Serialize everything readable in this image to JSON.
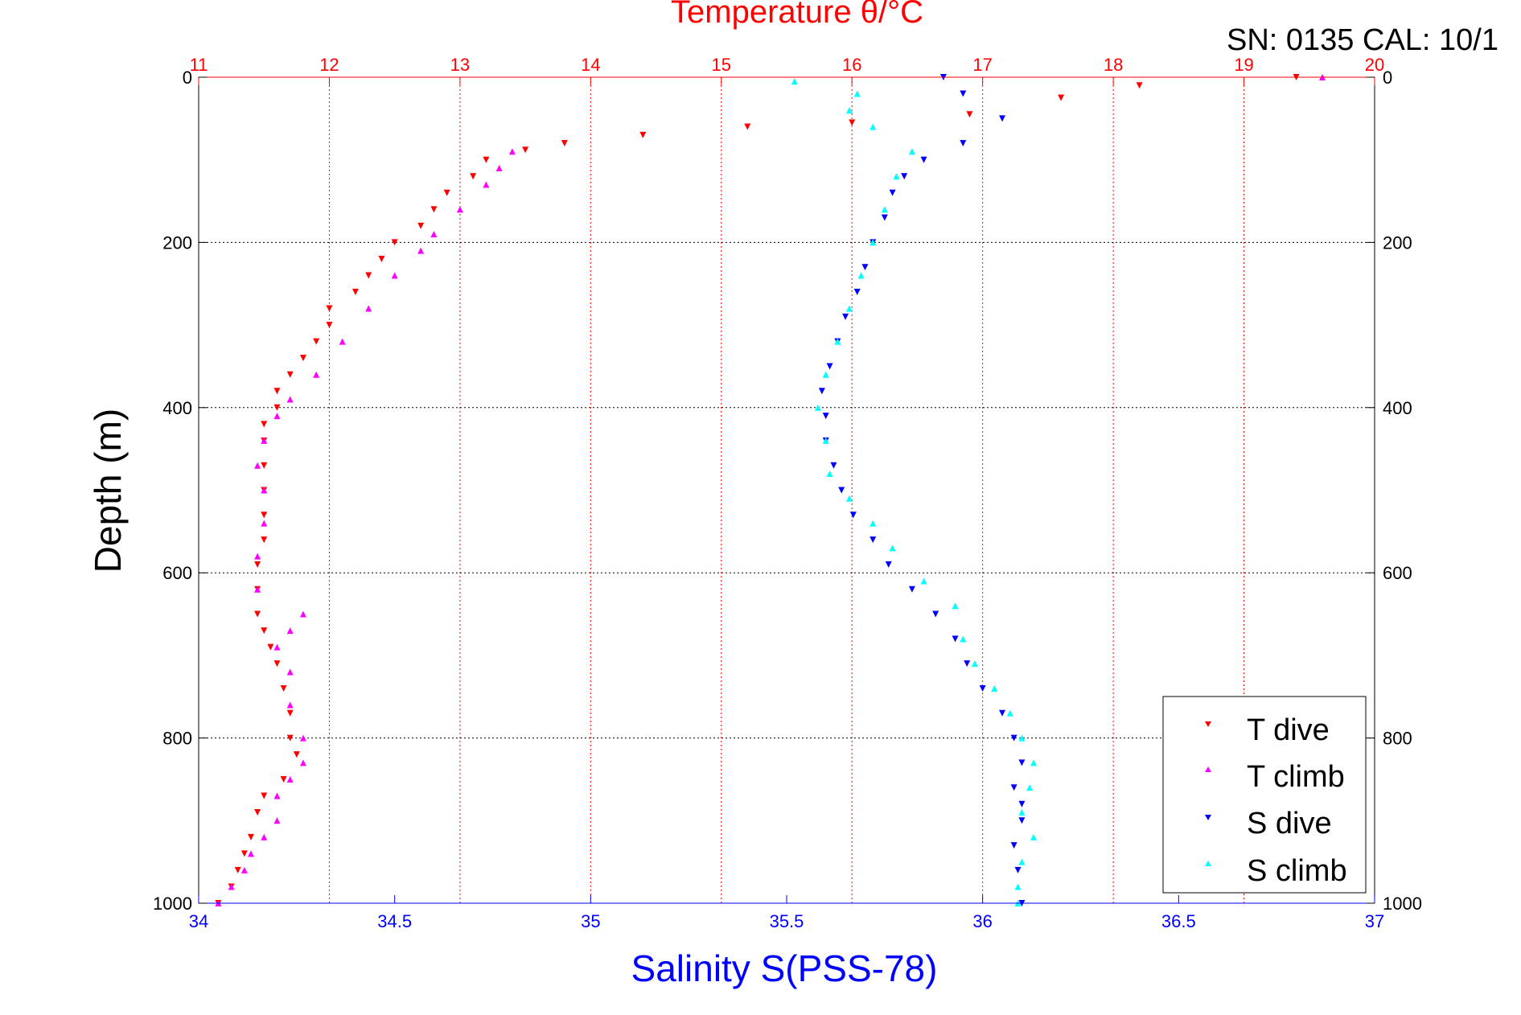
{
  "chart_data": {
    "type": "scatter",
    "title": "Temperature θ/°C",
    "subtitle": "SN: 0135  CAL: 10/1",
    "xlabel": "Salinity S(PSS-78)",
    "ylabel": "Depth (m)",
    "x_top": {
      "label": "Temperature θ/°C",
      "lim": [
        11,
        20
      ],
      "ticks": [
        11,
        12,
        13,
        14,
        15,
        16,
        17,
        18,
        19,
        20
      ],
      "color": "#ff0000"
    },
    "x_bottom": {
      "label": "Salinity S(PSS-78)",
      "lim": [
        34,
        37
      ],
      "ticks": [
        34,
        34.5,
        35,
        35.5,
        36,
        36.5,
        37
      ],
      "color": "#0000ff"
    },
    "y": {
      "lim": [
        0,
        1000
      ],
      "ticks": [
        0,
        200,
        400,
        600,
        800,
        1000
      ],
      "reversed": true
    },
    "grid": true,
    "legend": {
      "placement": "bottom-right",
      "entries": [
        "T dive",
        "T climb",
        "S dive",
        "S climb"
      ]
    },
    "series": [
      {
        "name": "T dive",
        "axis": "temperature",
        "marker": "down-triangle",
        "color": "#ff0000",
        "points": [
          [
            19.4,
            0
          ],
          [
            18.2,
            10
          ],
          [
            17.6,
            25
          ],
          [
            16.9,
            45
          ],
          [
            16.0,
            55
          ],
          [
            15.2,
            60
          ],
          [
            14.4,
            70
          ],
          [
            13.8,
            80
          ],
          [
            13.5,
            88
          ],
          [
            13.2,
            100
          ],
          [
            13.1,
            120
          ],
          [
            12.9,
            140
          ],
          [
            12.8,
            160
          ],
          [
            12.7,
            180
          ],
          [
            12.5,
            200
          ],
          [
            12.4,
            220
          ],
          [
            12.3,
            240
          ],
          [
            12.2,
            260
          ],
          [
            12.0,
            280
          ],
          [
            12.0,
            300
          ],
          [
            11.9,
            320
          ],
          [
            11.8,
            340
          ],
          [
            11.7,
            360
          ],
          [
            11.6,
            380
          ],
          [
            11.6,
            400
          ],
          [
            11.5,
            420
          ],
          [
            11.5,
            440
          ],
          [
            11.5,
            470
          ],
          [
            11.5,
            500
          ],
          [
            11.5,
            530
          ],
          [
            11.5,
            560
          ],
          [
            11.45,
            590
          ],
          [
            11.45,
            620
          ],
          [
            11.45,
            650
          ],
          [
            11.5,
            670
          ],
          [
            11.55,
            690
          ],
          [
            11.6,
            710
          ],
          [
            11.65,
            740
          ],
          [
            11.7,
            770
          ],
          [
            11.7,
            800
          ],
          [
            11.75,
            820
          ],
          [
            11.65,
            850
          ],
          [
            11.5,
            870
          ],
          [
            11.45,
            890
          ],
          [
            11.4,
            920
          ],
          [
            11.35,
            940
          ],
          [
            11.3,
            960
          ],
          [
            11.25,
            980
          ],
          [
            11.15,
            1000
          ]
        ]
      },
      {
        "name": "T climb",
        "axis": "temperature",
        "marker": "up-triangle",
        "color": "#ff00ff",
        "points": [
          [
            19.6,
            0
          ],
          [
            13.4,
            90
          ],
          [
            13.3,
            110
          ],
          [
            13.2,
            130
          ],
          [
            13.0,
            160
          ],
          [
            12.8,
            190
          ],
          [
            12.7,
            210
          ],
          [
            12.5,
            240
          ],
          [
            12.3,
            280
          ],
          [
            12.1,
            320
          ],
          [
            11.9,
            360
          ],
          [
            11.7,
            390
          ],
          [
            11.6,
            410
          ],
          [
            11.5,
            440
          ],
          [
            11.45,
            470
          ],
          [
            11.5,
            500
          ],
          [
            11.5,
            540
          ],
          [
            11.45,
            580
          ],
          [
            11.45,
            620
          ],
          [
            11.8,
            650
          ],
          [
            11.7,
            670
          ],
          [
            11.6,
            690
          ],
          [
            11.7,
            720
          ],
          [
            11.7,
            760
          ],
          [
            11.8,
            800
          ],
          [
            11.8,
            830
          ],
          [
            11.7,
            850
          ],
          [
            11.6,
            870
          ],
          [
            11.6,
            900
          ],
          [
            11.5,
            920
          ],
          [
            11.4,
            940
          ],
          [
            11.35,
            960
          ],
          [
            11.25,
            980
          ],
          [
            11.15,
            1000
          ]
        ]
      },
      {
        "name": "S dive",
        "axis": "salinity",
        "marker": "down-triangle",
        "color": "#0000ff",
        "points": [
          [
            35.9,
            0
          ],
          [
            35.95,
            20
          ],
          [
            36.05,
            50
          ],
          [
            35.95,
            80
          ],
          [
            35.85,
            100
          ],
          [
            35.8,
            120
          ],
          [
            35.77,
            140
          ],
          [
            35.75,
            170
          ],
          [
            35.72,
            200
          ],
          [
            35.7,
            230
          ],
          [
            35.68,
            260
          ],
          [
            35.65,
            290
          ],
          [
            35.63,
            320
          ],
          [
            35.61,
            350
          ],
          [
            35.59,
            380
          ],
          [
            35.6,
            410
          ],
          [
            35.6,
            440
          ],
          [
            35.62,
            470
          ],
          [
            35.64,
            500
          ],
          [
            35.67,
            530
          ],
          [
            35.72,
            560
          ],
          [
            35.76,
            590
          ],
          [
            35.82,
            620
          ],
          [
            35.88,
            650
          ],
          [
            35.93,
            680
          ],
          [
            35.96,
            710
          ],
          [
            36.0,
            740
          ],
          [
            36.05,
            770
          ],
          [
            36.08,
            800
          ],
          [
            36.1,
            830
          ],
          [
            36.08,
            860
          ],
          [
            36.1,
            880
          ],
          [
            36.1,
            900
          ],
          [
            36.08,
            930
          ],
          [
            36.09,
            960
          ],
          [
            36.1,
            1000
          ]
        ]
      },
      {
        "name": "S climb",
        "axis": "salinity",
        "marker": "up-triangle",
        "color": "#00ffff",
        "points": [
          [
            35.52,
            5
          ],
          [
            35.68,
            20
          ],
          [
            35.66,
            40
          ],
          [
            35.72,
            60
          ],
          [
            35.82,
            90
          ],
          [
            35.78,
            120
          ],
          [
            35.75,
            160
          ],
          [
            35.72,
            200
          ],
          [
            35.69,
            240
          ],
          [
            35.66,
            280
          ],
          [
            35.63,
            320
          ],
          [
            35.6,
            360
          ],
          [
            35.58,
            400
          ],
          [
            35.6,
            440
          ],
          [
            35.61,
            480
          ],
          [
            35.66,
            510
          ],
          [
            35.72,
            540
          ],
          [
            35.77,
            570
          ],
          [
            35.85,
            610
          ],
          [
            35.93,
            640
          ],
          [
            35.95,
            680
          ],
          [
            35.98,
            710
          ],
          [
            36.03,
            740
          ],
          [
            36.07,
            770
          ],
          [
            36.1,
            800
          ],
          [
            36.13,
            830
          ],
          [
            36.12,
            860
          ],
          [
            36.1,
            890
          ],
          [
            36.13,
            920
          ],
          [
            36.1,
            950
          ],
          [
            36.09,
            980
          ],
          [
            36.09,
            1000
          ]
        ]
      }
    ]
  }
}
